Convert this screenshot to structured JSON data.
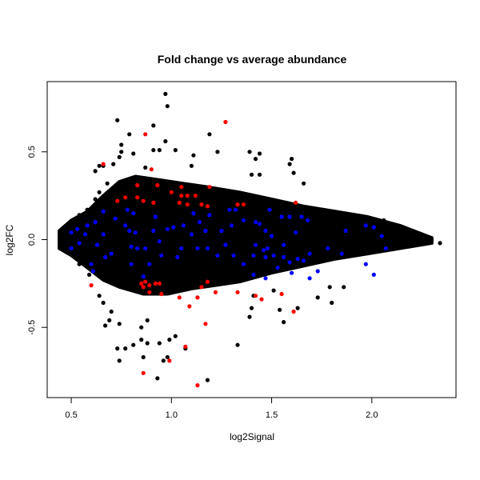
{
  "chart_data": {
    "type": "scatter",
    "title": "Fold change vs average abundance",
    "xlabel": "log2Signal",
    "ylabel": "log2FC",
    "xlim": [
      0.38,
      2.42
    ],
    "ylim": [
      -0.9,
      0.9
    ],
    "xticks": [
      0.5,
      1.0,
      1.5,
      2.0
    ],
    "xtick_labels": [
      "0.5",
      "1.0",
      "1.5",
      "2.0"
    ],
    "yticks": [
      -0.5,
      0.0,
      0.5
    ],
    "ytick_labels": [
      "-0.5",
      "0.0",
      "0.5"
    ],
    "grid": false,
    "legend": "none",
    "colors": {
      "default": "#000000",
      "highlight_red": "#ff0000",
      "highlight_blue": "#0000ff"
    },
    "dense_band": {
      "upper": [
        [
          0.44,
          0.05
        ],
        [
          0.5,
          0.11
        ],
        [
          0.58,
          0.16
        ],
        [
          0.66,
          0.25
        ],
        [
          0.74,
          0.33
        ],
        [
          0.82,
          0.36
        ],
        [
          0.94,
          0.34
        ],
        [
          1.06,
          0.32
        ],
        [
          1.18,
          0.3
        ],
        [
          1.34,
          0.27
        ],
        [
          1.5,
          0.23
        ],
        [
          1.66,
          0.19
        ],
        [
          1.82,
          0.16
        ],
        [
          1.98,
          0.13
        ],
        [
          2.14,
          0.08
        ],
        [
          2.3,
          0.01
        ]
      ],
      "lower": [
        [
          2.3,
          -0.02
        ],
        [
          2.14,
          -0.05
        ],
        [
          1.98,
          -0.08
        ],
        [
          1.82,
          -0.11
        ],
        [
          1.66,
          -0.15
        ],
        [
          1.5,
          -0.19
        ],
        [
          1.34,
          -0.24
        ],
        [
          1.22,
          -0.26
        ],
        [
          1.1,
          -0.28
        ],
        [
          0.98,
          -0.31
        ],
        [
          0.86,
          -0.31
        ],
        [
          0.74,
          -0.27
        ],
        [
          0.66,
          -0.23
        ],
        [
          0.58,
          -0.16
        ],
        [
          0.5,
          -0.09
        ],
        [
          0.44,
          -0.05
        ]
      ]
    },
    "series": [
      {
        "color": "#000000",
        "points": [
          [
            0.73,
            0.68
          ],
          [
            0.97,
            0.83
          ],
          [
            0.98,
            0.76
          ],
          [
            0.91,
            0.65
          ],
          [
            1.19,
            0.6
          ],
          [
            0.79,
            0.6
          ],
          [
            0.97,
            0.56
          ],
          [
            0.75,
            0.54
          ],
          [
            0.75,
            0.5
          ],
          [
            0.91,
            0.51
          ],
          [
            0.94,
            0.51
          ],
          [
            1.02,
            0.51
          ],
          [
            1.11,
            0.48
          ],
          [
            1.23,
            0.5
          ],
          [
            1.1,
            0.42
          ],
          [
            0.87,
            0.41
          ],
          [
            0.71,
            0.43
          ],
          [
            0.74,
            0.47
          ],
          [
            0.81,
            0.49
          ],
          [
            0.64,
            0.42
          ],
          [
            0.66,
            0.42
          ],
          [
            1.39,
            0.5
          ],
          [
            1.44,
            0.49
          ],
          [
            1.42,
            0.46
          ],
          [
            1.59,
            0.43
          ],
          [
            1.6,
            0.46
          ],
          [
            1.4,
            0.37
          ],
          [
            1.61,
            0.38
          ],
          [
            1.44,
            0.37
          ],
          [
            1.66,
            0.32
          ],
          [
            0.69,
            -0.46
          ],
          [
            0.67,
            -0.49
          ],
          [
            0.74,
            -0.48
          ],
          [
            0.81,
            -0.6
          ],
          [
            0.73,
            -0.62
          ],
          [
            0.77,
            -0.62
          ],
          [
            0.74,
            -0.69
          ],
          [
            0.85,
            -0.57
          ],
          [
            0.88,
            -0.59
          ],
          [
            0.94,
            -0.59
          ],
          [
            0.98,
            -0.67
          ],
          [
            0.96,
            -0.69
          ],
          [
            0.93,
            -0.79
          ],
          [
            1.18,
            -0.8
          ],
          [
            1.07,
            -0.62
          ],
          [
            0.85,
            -0.5
          ],
          [
            1.33,
            -0.6
          ],
          [
            1.56,
            -0.47
          ],
          [
            1.39,
            -0.44
          ],
          [
            0.99,
            -0.57
          ],
          [
            1.02,
            -0.55
          ],
          [
            0.86,
            -0.67
          ],
          [
            0.88,
            -0.46
          ],
          [
            2.27,
            -0.02
          ],
          [
            2.34,
            -0.02
          ],
          [
            2.22,
            0.02
          ],
          [
            2.18,
            0.0
          ],
          [
            2.15,
            0.05
          ],
          [
            2.06,
            0.11
          ],
          [
            2.02,
            0.07
          ],
          [
            1.87,
            -0.07
          ],
          [
            1.79,
            -0.27
          ],
          [
            1.86,
            -0.27
          ],
          [
            1.8,
            -0.36
          ],
          [
            1.73,
            -0.33
          ],
          [
            1.63,
            -0.39
          ],
          [
            1.54,
            -0.4
          ],
          [
            1.51,
            -0.29
          ],
          [
            1.41,
            -0.32
          ],
          [
            1.4,
            -0.39
          ],
          [
            0.54,
            0.14
          ],
          [
            0.58,
            0.17
          ],
          [
            0.62,
            0.23
          ],
          [
            0.64,
            0.27
          ],
          [
            0.68,
            0.32
          ],
          [
            0.62,
            0.39
          ],
          [
            0.54,
            -0.14
          ],
          [
            0.59,
            -0.2
          ],
          [
            0.64,
            -0.32
          ],
          [
            0.66,
            -0.36
          ],
          [
            0.7,
            -0.41
          ]
        ]
      },
      {
        "color": "#ff0000",
        "points": [
          [
            1.27,
            0.67
          ],
          [
            0.87,
            0.6
          ],
          [
            0.66,
            0.43
          ],
          [
            0.9,
            0.4
          ],
          [
            0.83,
            0.31
          ],
          [
            0.93,
            0.31
          ],
          [
            1.0,
            0.27
          ],
          [
            1.05,
            0.3
          ],
          [
            1.12,
            0.25
          ],
          [
            1.19,
            0.3
          ],
          [
            0.77,
            0.24
          ],
          [
            0.73,
            0.22
          ],
          [
            0.83,
            0.24
          ],
          [
            0.86,
            0.22
          ],
          [
            0.91,
            0.21
          ],
          [
            1.05,
            0.25
          ],
          [
            1.08,
            0.25
          ],
          [
            1.04,
            0.21
          ],
          [
            1.08,
            0.2
          ],
          [
            1.15,
            0.2
          ],
          [
            1.18,
            0.19
          ],
          [
            1.33,
            0.2
          ],
          [
            0.6,
            -0.26
          ],
          [
            0.87,
            -0.24
          ],
          [
            0.85,
            -0.25
          ],
          [
            0.89,
            -0.26
          ],
          [
            0.92,
            -0.25
          ],
          [
            0.94,
            -0.25
          ],
          [
            0.86,
            -0.27
          ],
          [
            0.89,
            -0.3
          ],
          [
            0.95,
            -0.31
          ],
          [
            1.04,
            -0.33
          ],
          [
            1.09,
            -0.38
          ],
          [
            1.13,
            -0.33
          ],
          [
            1.15,
            -0.27
          ],
          [
            1.18,
            -0.24
          ],
          [
            1.22,
            -0.3
          ],
          [
            1.17,
            -0.48
          ],
          [
            1.07,
            -0.61
          ],
          [
            0.99,
            -0.69
          ],
          [
            0.86,
            -0.76
          ],
          [
            1.13,
            -0.83
          ],
          [
            1.33,
            -0.3
          ],
          [
            1.36,
            0.2
          ],
          [
            1.62,
            0.21
          ],
          [
            1.42,
            -0.32
          ],
          [
            1.45,
            -0.34
          ],
          [
            1.55,
            -0.31
          ],
          [
            1.61,
            -0.41
          ]
        ]
      },
      {
        "color": "#0000ff",
        "points": [
          [
            0.5,
            0.04
          ],
          [
            0.53,
            0.06
          ],
          [
            0.5,
            -0.05
          ],
          [
            0.54,
            -0.02
          ],
          [
            0.57,
            0.03
          ],
          [
            0.58,
            0.08
          ],
          [
            0.6,
            -0.14
          ],
          [
            0.61,
            -0.18
          ],
          [
            0.62,
            0.1
          ],
          [
            0.66,
            0.16
          ],
          [
            0.66,
            0.03
          ],
          [
            0.63,
            -0.03
          ],
          [
            0.67,
            -0.1
          ],
          [
            0.7,
            -0.08
          ],
          [
            0.72,
            0.12
          ],
          [
            0.77,
            0.08
          ],
          [
            0.78,
            0.17
          ],
          [
            0.79,
            0.05
          ],
          [
            0.8,
            -0.04
          ],
          [
            0.8,
            -0.14
          ],
          [
            0.81,
            0.15
          ],
          [
            0.82,
            0.04
          ],
          [
            0.83,
            -0.05
          ],
          [
            0.87,
            -0.05
          ],
          [
            0.89,
            -0.14
          ],
          [
            0.86,
            -0.21
          ],
          [
            0.91,
            0.05
          ],
          [
            0.92,
            0.13
          ],
          [
            0.94,
            -0.01
          ],
          [
            0.95,
            -0.09
          ],
          [
            0.98,
            0.06
          ],
          [
            1.01,
            0.07
          ],
          [
            1.03,
            -0.1
          ],
          [
            1.05,
            -0.05
          ],
          [
            1.06,
            0.08
          ],
          [
            1.1,
            0.03
          ],
          [
            1.11,
            0.15
          ],
          [
            1.13,
            -0.05
          ],
          [
            1.14,
            0.1
          ],
          [
            1.17,
            0.05
          ],
          [
            1.18,
            -0.05
          ],
          [
            1.19,
            0.14
          ],
          [
            1.23,
            -0.09
          ],
          [
            1.25,
            0.05
          ],
          [
            1.27,
            -0.03
          ],
          [
            1.29,
            0.17
          ],
          [
            1.3,
            0.08
          ],
          [
            1.31,
            -0.09
          ],
          [
            1.32,
            0.17
          ],
          [
            1.36,
            0.11
          ],
          [
            1.42,
            0.1
          ],
          [
            1.44,
            0.09
          ],
          [
            1.47,
            0.05
          ],
          [
            1.49,
            0.17
          ],
          [
            1.5,
            0.02
          ],
          [
            1.55,
            0.13
          ],
          [
            1.59,
            0.13
          ],
          [
            1.62,
            0.04
          ],
          [
            1.65,
            0.13
          ],
          [
            1.68,
            0.11
          ],
          [
            1.42,
            -0.03
          ],
          [
            1.46,
            -0.06
          ],
          [
            1.48,
            -0.05
          ],
          [
            1.56,
            -0.03
          ],
          [
            1.41,
            -0.09
          ],
          [
            1.47,
            -0.1
          ],
          [
            1.51,
            -0.09
          ],
          [
            1.56,
            -0.1
          ],
          [
            1.59,
            -0.13
          ],
          [
            1.63,
            -0.11
          ],
          [
            1.66,
            -0.12
          ],
          [
            1.69,
            -0.08
          ],
          [
            1.78,
            -0.05
          ],
          [
            1.85,
            -0.08
          ],
          [
            1.87,
            0.05
          ],
          [
            1.97,
            0.08
          ],
          [
            2.01,
            0.07
          ],
          [
            2.05,
            0.02
          ],
          [
            2.07,
            -0.05
          ],
          [
            1.97,
            -0.14
          ],
          [
            2.01,
            -0.2
          ],
          [
            1.41,
            -0.2
          ],
          [
            1.47,
            -0.22
          ],
          [
            1.6,
            -0.19
          ],
          [
            1.69,
            -0.22
          ],
          [
            1.73,
            -0.18
          ],
          [
            1.53,
            -0.16
          ],
          [
            1.36,
            -0.14
          ]
        ]
      }
    ]
  }
}
